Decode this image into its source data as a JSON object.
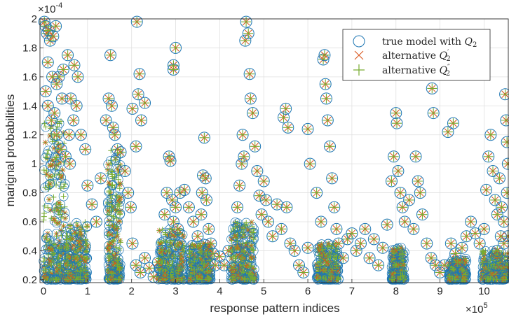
{
  "chart_data": {
    "type": "scatter",
    "title": "",
    "xlabel": "response pattern indices",
    "ylabel": "marignal probabilities",
    "x_multiplier_label": "×10",
    "x_multiplier_exp": "5",
    "y_multiplier_label": "×10",
    "y_multiplier_exp": "-4",
    "xlim": [
      -0.08,
      10.55
    ],
    "ylim": [
      0.18,
      2.0
    ],
    "x_ticks": [
      0,
      1,
      2,
      3,
      4,
      5,
      6,
      7,
      8,
      9,
      10
    ],
    "y_ticks": [
      0.2,
      0.4,
      0.6,
      0.8,
      1,
      1.2,
      1.4,
      1.6,
      1.8,
      2
    ],
    "y_tick_labels": [
      "0.2",
      "0.4",
      "0.6",
      "0.8",
      "1",
      "1.2",
      "1.4",
      "1.6",
      "1.8",
      "2"
    ],
    "grid": true,
    "legend_position": "top-right",
    "series": [
      {
        "name": "true model with Q_2",
        "marker": "circle",
        "color": "#1f77b4"
      },
      {
        "name": "alternative Q'_2",
        "marker": "x",
        "color": "#d95319"
      },
      {
        "name": "alternative Q''_2",
        "marker": "plus",
        "color": "#77ac30"
      }
    ],
    "legend": {
      "s1_pre": "true model with ",
      "s1_q": "Q",
      "s1_sub": "2",
      "s2_pre": "alternative ",
      "s2_q": "Q",
      "s2_prime": "′",
      "s2_sub": "2",
      "s3_pre": "alternative ",
      "s3_q": "Q",
      "s3_prime": "″",
      "s3_sub": "2"
    },
    "points": [
      [
        0.02,
        1.98
      ],
      [
        0.05,
        1.95
      ],
      [
        0.08,
        1.9
      ],
      [
        0.12,
        1.92
      ],
      [
        0.15,
        1.85
      ],
      [
        0.22,
        1.88
      ],
      [
        0.28,
        1.95
      ],
      [
        0.35,
        1.6
      ],
      [
        0.45,
        1.65
      ],
      [
        0.55,
        1.75
      ],
      [
        0.62,
        1.45
      ],
      [
        0.7,
        1.68
      ],
      [
        0.78,
        1.6
      ],
      [
        0.85,
        1.2
      ],
      [
        0.95,
        1.1
      ],
      [
        0.05,
        1.5
      ],
      [
        0.1,
        1.4
      ],
      [
        0.18,
        1.3
      ],
      [
        0.25,
        1.35
      ],
      [
        0.3,
        1.2
      ],
      [
        0.4,
        1.1
      ],
      [
        0.5,
        1.05
      ],
      [
        0.6,
        1.0
      ],
      [
        0.68,
        1.3
      ],
      [
        0.75,
        1.4
      ],
      [
        0.1,
        1.7
      ],
      [
        0.2,
        1.6
      ],
      [
        0.3,
        1.55
      ],
      [
        0.42,
        1.45
      ],
      [
        0.58,
        1.2
      ],
      [
        1.0,
        0.85
      ],
      [
        1.1,
        0.72
      ],
      [
        1.2,
        0.6
      ],
      [
        1.3,
        0.9
      ],
      [
        1.42,
        1.3
      ],
      [
        1.48,
        1.45
      ],
      [
        1.52,
        1.75
      ],
      [
        1.55,
        1.4
      ],
      [
        1.58,
        1.25
      ],
      [
        1.62,
        1.2
      ],
      [
        1.68,
        1.1
      ],
      [
        1.75,
        1.08
      ],
      [
        1.85,
        0.95
      ],
      [
        1.92,
        0.8
      ],
      [
        1.98,
        0.7
      ],
      [
        2.02,
        1.38
      ],
      [
        2.12,
        1.98
      ],
      [
        2.18,
        1.62
      ],
      [
        2.15,
        1.48
      ],
      [
        2.22,
        1.3
      ],
      [
        2.3,
        1.42
      ],
      [
        2.1,
        1.12
      ],
      [
        2.02,
        0.45
      ],
      [
        2.1,
        0.3
      ],
      [
        2.2,
        0.25
      ],
      [
        2.3,
        0.35
      ],
      [
        2.4,
        0.28
      ],
      [
        2.5,
        0.22
      ],
      [
        2.6,
        0.32
      ],
      [
        2.7,
        0.4
      ],
      [
        2.75,
        0.65
      ],
      [
        2.8,
        0.8
      ],
      [
        2.85,
        1.05
      ],
      [
        2.88,
        1.02
      ],
      [
        2.92,
        0.75
      ],
      [
        2.95,
        0.6
      ],
      [
        3.0,
        0.7
      ],
      [
        2.95,
        1.68
      ],
      [
        3.0,
        1.8
      ],
      [
        2.95,
        1.65
      ],
      [
        3.05,
        0.55
      ],
      [
        3.1,
        0.8
      ],
      [
        3.2,
        0.82
      ],
      [
        3.3,
        0.7
      ],
      [
        3.4,
        0.6
      ],
      [
        3.5,
        0.5
      ],
      [
        3.58,
        0.65
      ],
      [
        3.6,
        0.8
      ],
      [
        3.62,
        0.92
      ],
      [
        3.65,
        1.18
      ],
      [
        3.68,
        0.9
      ],
      [
        3.7,
        0.75
      ],
      [
        3.75,
        0.55
      ],
      [
        3.8,
        0.45
      ],
      [
        3.85,
        0.38
      ],
      [
        3.9,
        0.3
      ],
      [
        4.0,
        0.36
      ],
      [
        4.1,
        0.3
      ],
      [
        4.2,
        0.4
      ],
      [
        4.3,
        0.28
      ],
      [
        4.4,
        0.7
      ],
      [
        4.45,
        0.85
      ],
      [
        4.5,
        1.0
      ],
      [
        4.52,
        1.2
      ],
      [
        4.55,
        1.05
      ],
      [
        4.58,
        1.85
      ],
      [
        4.6,
        1.98
      ],
      [
        4.65,
        1.9
      ],
      [
        4.68,
        1.62
      ],
      [
        4.7,
        1.45
      ],
      [
        4.75,
        1.35
      ],
      [
        4.8,
        1.12
      ],
      [
        4.85,
        0.95
      ],
      [
        4.9,
        0.78
      ],
      [
        4.95,
        0.65
      ],
      [
        5.0,
        0.88
      ],
      [
        5.05,
        0.75
      ],
      [
        5.1,
        0.6
      ],
      [
        5.2,
        0.5
      ],
      [
        5.3,
        0.72
      ],
      [
        5.4,
        0.55
      ],
      [
        5.45,
        1.32
      ],
      [
        5.5,
        1.38
      ],
      [
        5.55,
        1.25
      ],
      [
        5.52,
        0.7
      ],
      [
        5.6,
        0.45
      ],
      [
        5.7,
        0.4
      ],
      [
        5.8,
        0.3
      ],
      [
        5.9,
        0.25
      ],
      [
        6.0,
        0.42
      ],
      [
        6.0,
        1.24
      ],
      [
        6.05,
        1.0
      ],
      [
        6.2,
        0.8
      ],
      [
        6.3,
        0.6
      ],
      [
        6.35,
        1.72
      ],
      [
        6.38,
        1.75
      ],
      [
        6.4,
        1.55
      ],
      [
        6.42,
        1.45
      ],
      [
        6.45,
        1.3
      ],
      [
        6.5,
        1.12
      ],
      [
        6.55,
        0.9
      ],
      [
        6.6,
        0.7
      ],
      [
        6.65,
        0.55
      ],
      [
        6.7,
        0.45
      ],
      [
        6.8,
        0.35
      ],
      [
        6.9,
        0.48
      ],
      [
        7.0,
        0.52
      ],
      [
        7.1,
        0.4
      ],
      [
        7.2,
        0.45
      ],
      [
        7.3,
        0.55
      ],
      [
        7.4,
        0.35
      ],
      [
        7.5,
        0.48
      ],
      [
        7.6,
        0.3
      ],
      [
        7.7,
        0.42
      ],
      [
        7.8,
        0.58
      ],
      [
        7.9,
        0.88
      ],
      [
        7.95,
        1.05
      ],
      [
        8.0,
        1.35
      ],
      [
        8.02,
        1.28
      ],
      [
        8.05,
        0.95
      ],
      [
        8.1,
        0.8
      ],
      [
        8.15,
        0.7
      ],
      [
        8.2,
        0.6
      ],
      [
        8.3,
        0.75
      ],
      [
        8.4,
        0.55
      ],
      [
        8.45,
        1.05
      ],
      [
        8.5,
        0.88
      ],
      [
        8.55,
        0.8
      ],
      [
        8.6,
        0.65
      ],
      [
        8.7,
        0.45
      ],
      [
        8.8,
        0.35
      ],
      [
        8.82,
        1.52
      ],
      [
        8.85,
        1.35
      ],
      [
        8.9,
        0.3
      ],
      [
        9.0,
        0.25
      ],
      [
        9.1,
        0.3
      ],
      [
        9.18,
        1.22
      ],
      [
        9.25,
        0.45
      ],
      [
        9.3,
        1.28
      ],
      [
        9.35,
        0.38
      ],
      [
        9.4,
        0.32
      ],
      [
        9.5,
        0.42
      ],
      [
        9.6,
        0.5
      ],
      [
        9.7,
        0.6
      ],
      [
        9.8,
        0.52
      ],
      [
        9.9,
        0.45
      ],
      [
        10.0,
        0.55
      ],
      [
        10.05,
        0.82
      ],
      [
        10.1,
        1.05
      ],
      [
        10.15,
        1.2
      ],
      [
        10.2,
        0.95
      ],
      [
        10.25,
        0.75
      ],
      [
        10.3,
        0.65
      ],
      [
        10.35,
        0.9
      ],
      [
        10.4,
        0.7
      ],
      [
        10.45,
        0.6
      ],
      [
        10.48,
        1.48
      ],
      [
        10.5,
        1.3
      ],
      [
        10.52,
        1.15
      ],
      [
        10.54,
        1.0
      ],
      [
        10.52,
        0.8
      ],
      [
        10.54,
        0.5
      ],
      [
        10.45,
        0.45
      ],
      [
        10.38,
        0.5
      ],
      [
        10.3,
        0.4
      ]
    ],
    "dense_bands": [
      {
        "x": [
          0.0,
          0.5
        ],
        "y": [
          0.2,
          1.3
        ]
      },
      {
        "x": [
          0.5,
          1.0
        ],
        "y": [
          0.2,
          0.6
        ]
      },
      {
        "x": [
          1.45,
          1.75
        ],
        "y": [
          0.2,
          1.1
        ]
      },
      {
        "x": [
          2.6,
          3.2
        ],
        "y": [
          0.2,
          0.55
        ]
      },
      {
        "x": [
          3.3,
          3.8
        ],
        "y": [
          0.2,
          0.45
        ]
      },
      {
        "x": [
          4.25,
          4.8
        ],
        "y": [
          0.2,
          0.6
        ]
      },
      {
        "x": [
          6.2,
          6.7
        ],
        "y": [
          0.2,
          0.45
        ]
      },
      {
        "x": [
          7.9,
          8.2
        ],
        "y": [
          0.2,
          0.42
        ]
      },
      {
        "x": [
          9.2,
          9.6
        ],
        "y": [
          0.2,
          0.35
        ]
      },
      {
        "x": [
          9.95,
          10.55
        ],
        "y": [
          0.2,
          0.4
        ]
      }
    ]
  }
}
